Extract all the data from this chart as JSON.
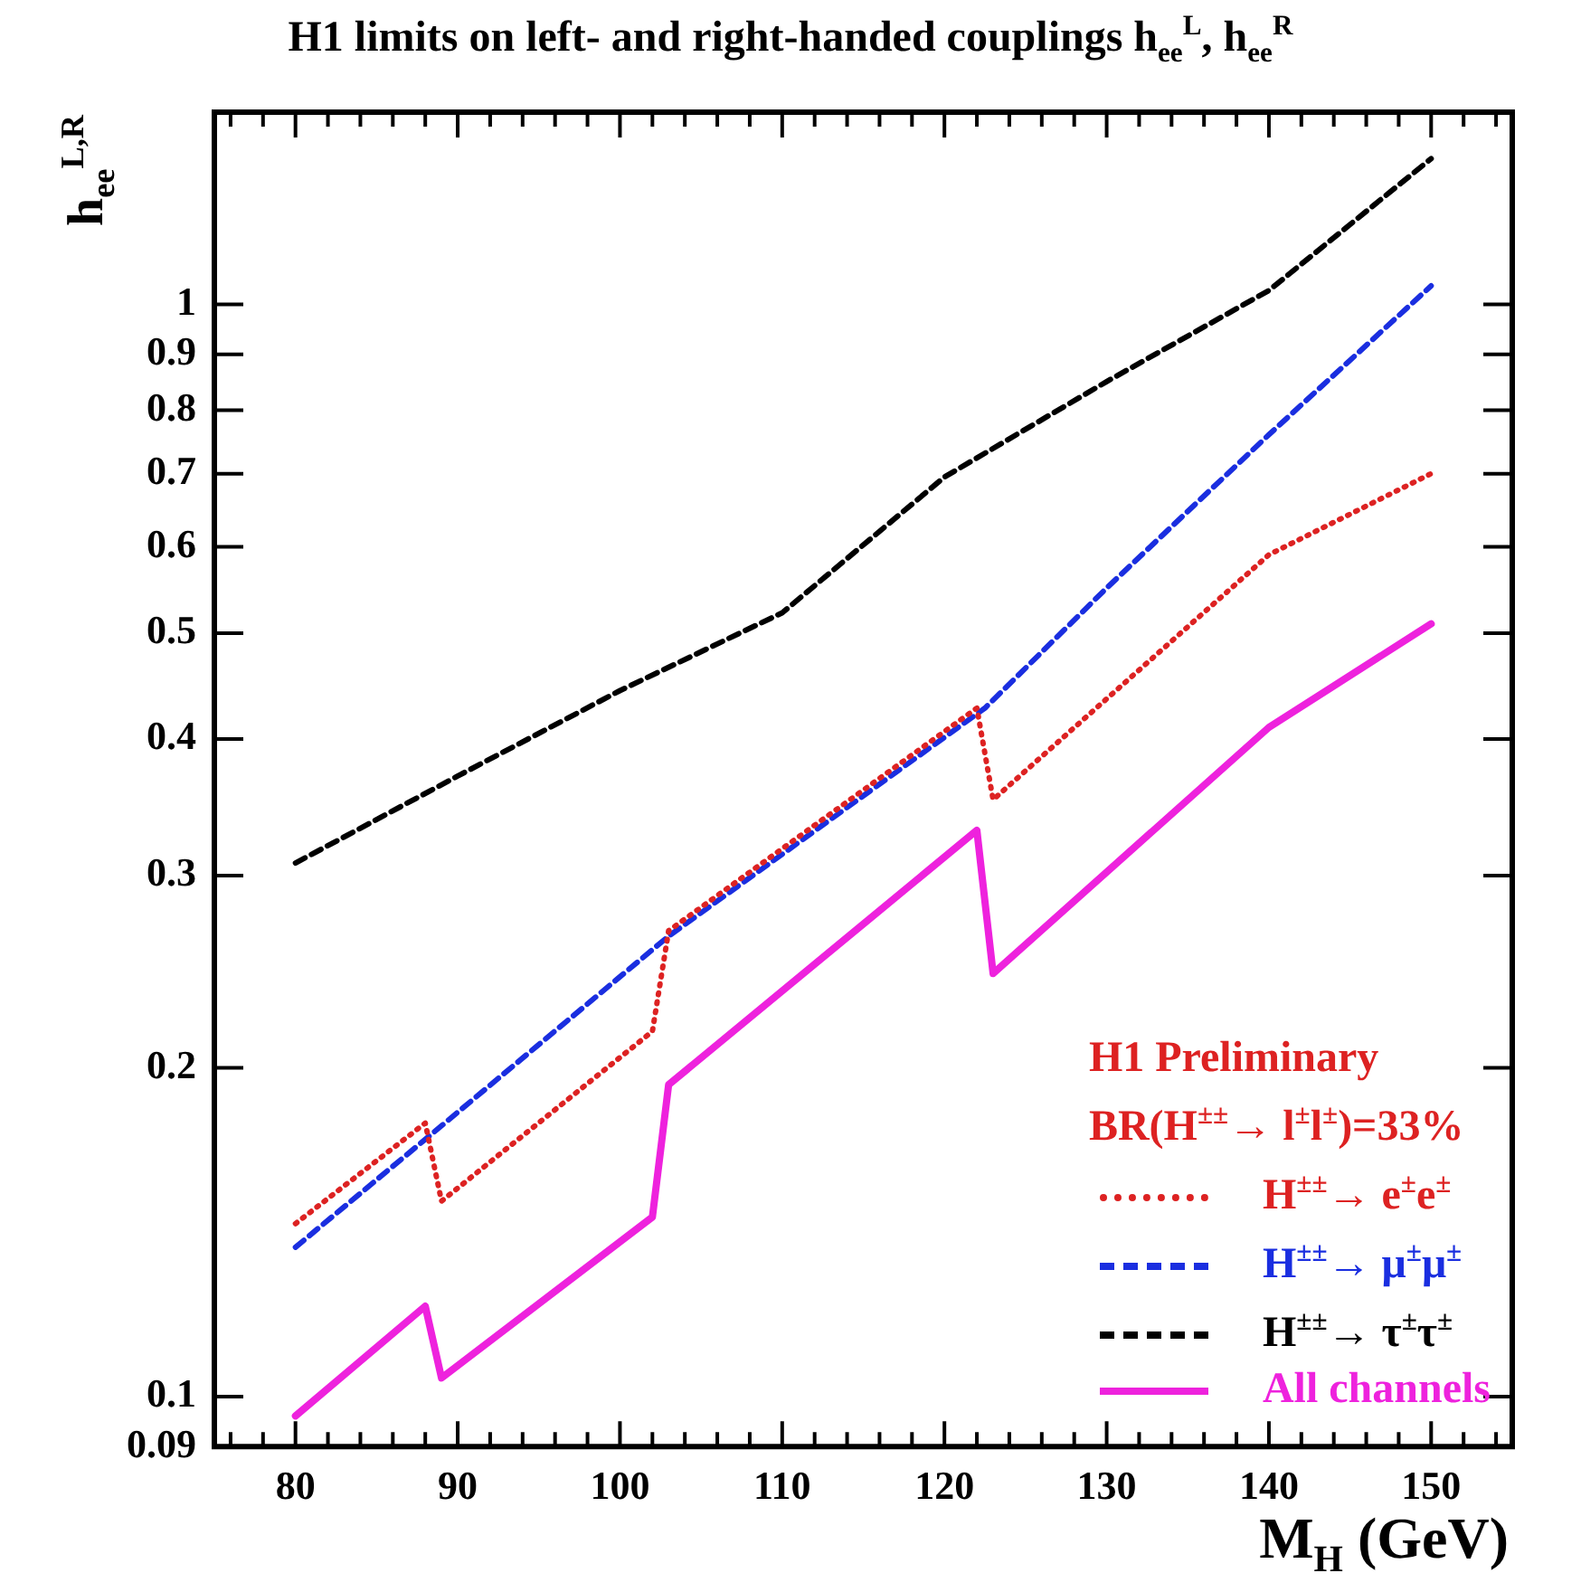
{
  "chart_data": {
    "type": "line",
    "title": "H1 limits on left- and right-handed couplings h$_{ee}$$^{L}$, h$_{ee}$$^{R}$",
    "xlabel": "M$_{H}$ (GeV)",
    "ylabel": "h$_{ee}$$^{L,R}$",
    "log": "y",
    "grid": false,
    "legend": "bottom right",
    "marker": "none",
    "xlim": [
      75,
      155
    ],
    "xticks": [
      {
        "value": 76,
        "label": null
      },
      {
        "value": 78,
        "label": null
      },
      80,
      {
        "value": 82,
        "label": null
      },
      {
        "value": 84,
        "label": null
      },
      {
        "value": 86,
        "label": null
      },
      {
        "value": 88,
        "label": null
      },
      90,
      {
        "value": 92,
        "label": null
      },
      {
        "value": 94,
        "label": null
      },
      {
        "value": 96,
        "label": null
      },
      {
        "value": 98,
        "label": null
      },
      100,
      {
        "value": 102,
        "label": null
      },
      {
        "value": 104,
        "label": null
      },
      {
        "value": 106,
        "label": null
      },
      {
        "value": 108,
        "label": null
      },
      110,
      {
        "value": 112,
        "label": null
      },
      {
        "value": 114,
        "label": null
      },
      {
        "value": 116,
        "label": null
      },
      {
        "value": 118,
        "label": null
      },
      120,
      {
        "value": 122,
        "label": null
      },
      {
        "value": 124,
        "label": null
      },
      {
        "value": 126,
        "label": null
      },
      {
        "value": 128,
        "label": null
      },
      130,
      {
        "value": 132,
        "label": null
      },
      {
        "value": 134,
        "label": null
      },
      {
        "value": 136,
        "label": null
      },
      {
        "value": 138,
        "label": null
      },
      140,
      {
        "value": 142,
        "label": null
      },
      {
        "value": 144,
        "label": null
      },
      {
        "value": 146,
        "label": null
      },
      {
        "value": 148,
        "label": null
      },
      150,
      {
        "value": 152,
        "label": null
      },
      {
        "value": 154,
        "label": null
      }
    ],
    "ylim": [
      0.09,
      1.5
    ],
    "yticks": [
      0.09,
      0.1,
      0.2,
      0.3,
      0.4,
      0.5,
      0.6,
      0.7,
      0.8,
      0.9,
      1
    ],
    "annotations": [
      "H1 Preliminary",
      "BR(H$^{±±}$→ l$^{±}$l$^{±}$)=33%"
    ],
    "series": [
      {
        "name": "H$^{±±}$→ e$^{±}$e$^{±}$",
        "color": "#dd2222",
        "line_style": "dotted",
        "x": [
          80,
          88,
          89,
          102,
          103,
          122,
          123,
          140,
          150
        ],
        "values": [
          0.144,
          0.178,
          0.151,
          0.216,
          0.267,
          0.427,
          0.352,
          0.59,
          0.7
        ]
      },
      {
        "name": "H$^{±±}$→ μ$^{±}$μ$^{±}$",
        "color": "#1a2ee0",
        "line_style": "dashed",
        "x": [
          80,
          88,
          103,
          122.5,
          130,
          140,
          150
        ],
        "values": [
          0.137,
          0.172,
          0.264,
          0.427,
          0.55,
          0.76,
          1.04
        ]
      },
      {
        "name": "H$^{±±}$→ τ$^{±}$τ$^{±}$",
        "color": "#000000",
        "line_style": "dashed",
        "x": [
          80,
          90,
          100,
          110,
          120,
          130,
          140,
          150
        ],
        "values": [
          0.308,
          0.37,
          0.443,
          0.522,
          0.695,
          0.85,
          1.03,
          1.36
        ]
      },
      {
        "name": "All channels",
        "color": "#ee22dd",
        "line_style": "solid",
        "x": [
          80,
          88,
          89,
          102,
          103,
          122,
          123,
          140,
          150
        ],
        "values": [
          0.096,
          0.121,
          0.104,
          0.146,
          0.193,
          0.33,
          0.244,
          0.41,
          0.51
        ]
      }
    ]
  }
}
